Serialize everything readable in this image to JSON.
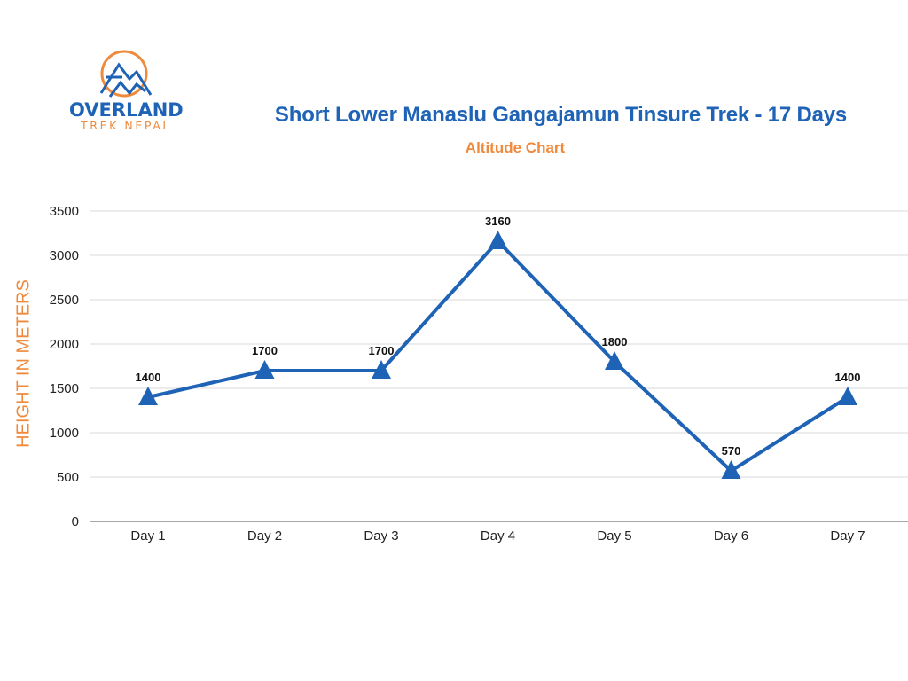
{
  "brand": {
    "name_line1": "OVERLAND",
    "name_line2": "TREK NEPAL",
    "colors": {
      "blue": "#1f63b6",
      "orange": "#ef8a3c"
    }
  },
  "header": {
    "title": "Short Lower Manaslu Gangajamun Tinsure Trek - 17 Days",
    "subtitle": "Altitude Chart"
  },
  "chart_data": {
    "type": "line",
    "title": "Short Lower Manaslu Gangajamun Tinsure Trek - 17 Days",
    "subtitle": "Altitude Chart",
    "xlabel": "",
    "ylabel": "HEIGHT IN METERS",
    "categories": [
      "Day 1",
      "Day 2",
      "Day 3",
      "Day 4",
      "Day 5",
      "Day 6",
      "Day 7"
    ],
    "series": [
      {
        "name": "Altitude",
        "values": [
          1400,
          1700,
          1700,
          3160,
          1800,
          570,
          1400
        ],
        "color": "#1f63b6",
        "marker": "triangle"
      }
    ],
    "data_labels": [
      "1400",
      "1700",
      "1700",
      "3160",
      "1800",
      "570",
      "1400"
    ],
    "yticks": [
      0,
      500,
      1000,
      1500,
      2000,
      2500,
      3000,
      3500
    ],
    "ylim": [
      0,
      3500
    ],
    "grid": true,
    "legend": "none"
  }
}
